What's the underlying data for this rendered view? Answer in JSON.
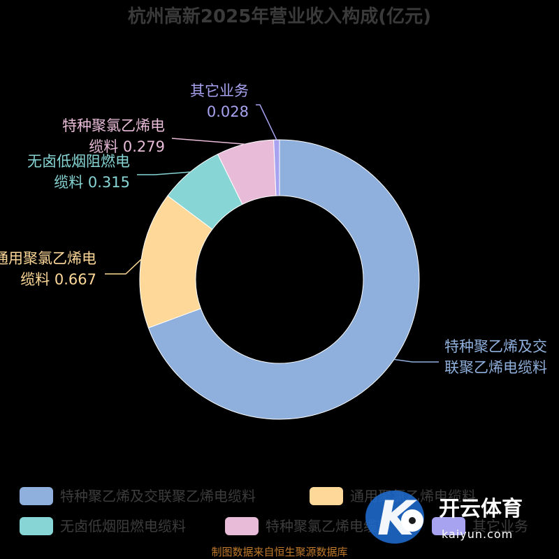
{
  "chart_data": {
    "type": "pie",
    "title": "杭州高新2025年营业收入构成(亿元)",
    "unit": "亿元",
    "slices": [
      {
        "name": "特种聚乙烯及交联聚乙烯电缆料",
        "value": 2.92,
        "color": "#8fb0dc",
        "label_lines": [
          "特种聚乙烯及交",
          "联聚乙烯电缆料"
        ]
      },
      {
        "name": "通用聚氯乙烯电缆料",
        "value": 0.667,
        "color": "#fed898",
        "label_lines": [
          "通用聚氯乙烯电",
          "缆料 0.667"
        ]
      },
      {
        "name": "无卤低烟阻燃电缆料",
        "value": 0.315,
        "color": "#87d5d5",
        "label_lines": [
          "无卤低烟阻燃电",
          "缆料 0.315"
        ]
      },
      {
        "name": "特种聚氯乙烯电缆料",
        "value": 0.279,
        "color": "#e8bcd8",
        "label_lines": [
          "特种聚氯乙烯电",
          "缆料 0.279"
        ]
      },
      {
        "name": "其它业务",
        "value": 0.028,
        "color": "#a7a3f0",
        "label_lines": [
          "其它业务",
          "0.028"
        ]
      }
    ],
    "legend_position": "bottom"
  },
  "source": "制图数据来自恒生聚源数据库",
  "watermark": {
    "brand": "开云体育",
    "site": "kaiyun.com"
  }
}
